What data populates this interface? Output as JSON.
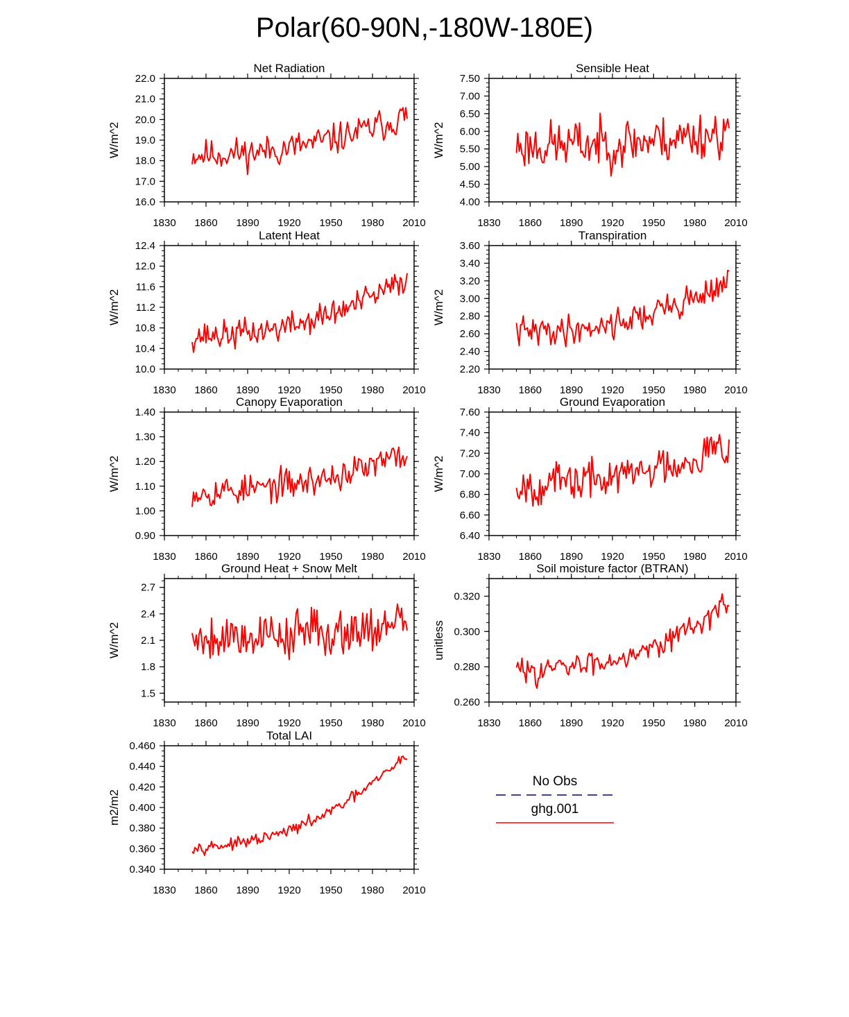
{
  "figure": {
    "title": "Polar(60-90N,-180W-180E)",
    "line_color": "#ff0000",
    "obs_color": "#000080"
  },
  "legend": {
    "entries": [
      {
        "label": "No Obs",
        "style": "dashed",
        "color": "#000080"
      },
      {
        "label": "ghg.001",
        "style": "solid",
        "color": "#ff0000"
      }
    ]
  },
  "chart_data": [
    {
      "type": "line",
      "title": "Net Radiation",
      "ylabel": "W/m^2",
      "xlim": [
        1830,
        2010
      ],
      "ylim": [
        16.0,
        22.0
      ],
      "yticks": [
        "16.0",
        "17.0",
        "18.0",
        "19.0",
        "20.0",
        "21.0",
        "22.0"
      ],
      "xticks": [
        "1830",
        "1860",
        "1890",
        "1920",
        "1950",
        "1980",
        "2010"
      ],
      "start_year": 1850,
      "series": [
        {
          "name": "ghg.001",
          "mean_start": 18.3,
          "mean_end": 20.2,
          "noise": 0.55,
          "seed": 11
        }
      ]
    },
    {
      "type": "line",
      "title": "Sensible Heat",
      "ylabel": "W/m^2",
      "xlim": [
        1830,
        2010
      ],
      "ylim": [
        4.0,
        7.5
      ],
      "yticks": [
        "4.00",
        "4.50",
        "5.00",
        "5.50",
        "6.00",
        "6.50",
        "7.00",
        "7.50"
      ],
      "xticks": [
        "1830",
        "1860",
        "1890",
        "1920",
        "1950",
        "1980",
        "2010"
      ],
      "start_year": 1850,
      "series": [
        {
          "name": "ghg.001",
          "mean_start": 5.6,
          "mean_end": 6.0,
          "noise": 0.5,
          "seed": 23
        }
      ]
    },
    {
      "type": "line",
      "title": "Latent Heat",
      "ylabel": "W/m^2",
      "xlim": [
        1830,
        2010
      ],
      "ylim": [
        10.0,
        12.4
      ],
      "yticks": [
        "10.0",
        "10.4",
        "10.8",
        "11.2",
        "11.6",
        "12.0",
        "12.4"
      ],
      "xticks": [
        "1830",
        "1860",
        "1890",
        "1920",
        "1950",
        "1980",
        "2010"
      ],
      "start_year": 1850,
      "series": [
        {
          "name": "ghg.001",
          "mean_start": 10.65,
          "mean_end": 11.75,
          "noise": 0.2,
          "seed": 37
        }
      ]
    },
    {
      "type": "line",
      "title": "Transpiration",
      "ylabel": "W/m^2",
      "xlim": [
        1830,
        2010
      ],
      "ylim": [
        2.2,
        3.6
      ],
      "yticks": [
        "2.20",
        "2.40",
        "2.60",
        "2.80",
        "3.00",
        "3.20",
        "3.40",
        "3.60"
      ],
      "xticks": [
        "1830",
        "1860",
        "1890",
        "1920",
        "1950",
        "1980",
        "2010"
      ],
      "start_year": 1850,
      "series": [
        {
          "name": "ghg.001",
          "mean_start": 2.62,
          "mean_end": 3.2,
          "noise": 0.12,
          "seed": 41
        }
      ]
    },
    {
      "type": "line",
      "title": "Canopy Evaporation",
      "ylabel": "W/m^2",
      "xlim": [
        1830,
        2010
      ],
      "ylim": [
        0.9,
        1.4
      ],
      "yticks": [
        "0.90",
        "1.00",
        "1.10",
        "1.20",
        "1.30",
        "1.40"
      ],
      "xticks": [
        "1830",
        "1860",
        "1890",
        "1920",
        "1950",
        "1980",
        "2010"
      ],
      "start_year": 1850,
      "series": [
        {
          "name": "ghg.001",
          "mean_start": 1.08,
          "mean_end": 1.23,
          "noise": 0.045,
          "seed": 53
        }
      ]
    },
    {
      "type": "line",
      "title": "Ground Evaporation",
      "ylabel": "W/m^2",
      "xlim": [
        1830,
        2010
      ],
      "ylim": [
        6.4,
        7.6
      ],
      "yticks": [
        "6.40",
        "6.60",
        "6.80",
        "7.00",
        "7.20",
        "7.40",
        "7.60"
      ],
      "xticks": [
        "1830",
        "1860",
        "1890",
        "1920",
        "1950",
        "1980",
        "2010"
      ],
      "start_year": 1850,
      "series": [
        {
          "name": "ghg.001",
          "mean_start": 6.9,
          "mean_end": 7.3,
          "noise": 0.14,
          "seed": 67
        }
      ]
    },
    {
      "type": "line",
      "title": "Ground Heat + Snow Melt",
      "ylabel": "W/m^2",
      "xlim": [
        1830,
        2010
      ],
      "ylim": [
        1.4,
        2.8
      ],
      "yticks": [
        "1.5",
        "1.8",
        "2.1",
        "2.4",
        "2.7"
      ],
      "xticks": [
        "1830",
        "1860",
        "1890",
        "1920",
        "1950",
        "1980",
        "2010"
      ],
      "start_year": 1850,
      "series": [
        {
          "name": "ghg.001",
          "mean_start": 2.15,
          "mean_end": 2.3,
          "noise": 0.2,
          "seed": 79
        }
      ]
    },
    {
      "type": "line",
      "title": "Soil moisture factor (BTRAN)",
      "ylabel": "unitless",
      "xlim": [
        1830,
        2010
      ],
      "ylim": [
        0.26,
        0.33
      ],
      "yticks": [
        "0.260",
        "0.280",
        "0.300",
        "0.320"
      ],
      "xticks": [
        "1830",
        "1860",
        "1890",
        "1920",
        "1950",
        "1980",
        "2010"
      ],
      "start_year": 1850,
      "series": [
        {
          "name": "ghg.001",
          "mean_start": 0.278,
          "mean_end": 0.316,
          "noise": 0.005,
          "seed": 83
        }
      ]
    },
    {
      "type": "line",
      "title": "Total LAI",
      "ylabel": "m2/m2",
      "xlim": [
        1830,
        2010
      ],
      "ylim": [
        0.34,
        0.46
      ],
      "yticks": [
        "0.340",
        "0.360",
        "0.380",
        "0.400",
        "0.420",
        "0.440",
        "0.460"
      ],
      "xticks": [
        "1830",
        "1860",
        "1890",
        "1920",
        "1950",
        "1980",
        "2010"
      ],
      "start_year": 1850,
      "series": [
        {
          "name": "ghg.001",
          "mean_start": 0.362,
          "mean_end": 0.452,
          "noise": 0.004,
          "seed": 97
        }
      ]
    }
  ]
}
